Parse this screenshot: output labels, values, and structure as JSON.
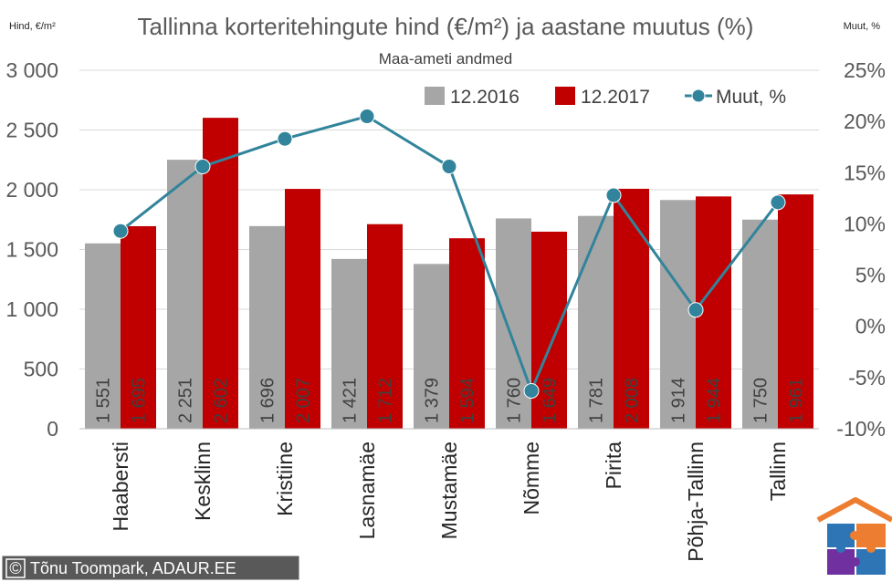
{
  "chart_data": {
    "type": "bar",
    "title": "Tallinna korteritehingute hind (€/m²) ja aastane muutus (%)",
    "subtitle": "Maa-ameti andmed",
    "ylabel": "Hind, €/m²",
    "y2label": "Muut, %",
    "ylim": [
      0,
      3000
    ],
    "y2lim": [
      -10,
      25
    ],
    "yticks": [
      0,
      500,
      1000,
      1500,
      2000,
      2500,
      3000
    ],
    "ytick_labels": [
      "0",
      "500",
      "1 000",
      "1 500",
      "2 000",
      "2 500",
      "3 000"
    ],
    "y2ticks": [
      -10,
      -5,
      0,
      5,
      10,
      15,
      20,
      25
    ],
    "y2tick_labels": [
      "-10%",
      "-5%",
      "0%",
      "5%",
      "10%",
      "15%",
      "20%",
      "25%"
    ],
    "categories": [
      "Haabersti",
      "Kesklinn",
      "Kristiine",
      "Lasnamäe",
      "Mustamäe",
      "Nõmme",
      "Pirita",
      "Põhja-Tallinn",
      "Tallinn"
    ],
    "series": [
      {
        "name": "12.2016",
        "kind": "bar",
        "color": "#a6a6a6",
        "values": [
          1551,
          2251,
          1696,
          1421,
          1379,
          1760,
          1781,
          1914,
          1750
        ],
        "labels": [
          "1 551",
          "2 251",
          "1 696",
          "1 421",
          "1 379",
          "1 760",
          "1 781",
          "1 914",
          "1 750"
        ]
      },
      {
        "name": "12.2017",
        "kind": "bar",
        "color": "#c00000",
        "values": [
          1695,
          2602,
          2007,
          1712,
          1594,
          1649,
          2008,
          1944,
          1961
        ],
        "labels": [
          "1 695",
          "2 602",
          "2 007",
          "1 712",
          "1 594",
          "1 649",
          "2 008",
          "1 944",
          "1 961"
        ]
      },
      {
        "name": "Muut, %",
        "kind": "line",
        "axis": "secondary",
        "color": "#31849b",
        "values": [
          9.3,
          15.6,
          18.3,
          20.5,
          15.6,
          -6.3,
          12.8,
          1.6,
          12.1
        ]
      }
    ],
    "legend": "top-right"
  },
  "credit": {
    "symbol": "©",
    "text": "Tõnu Toompark, ADAUR.EE"
  }
}
